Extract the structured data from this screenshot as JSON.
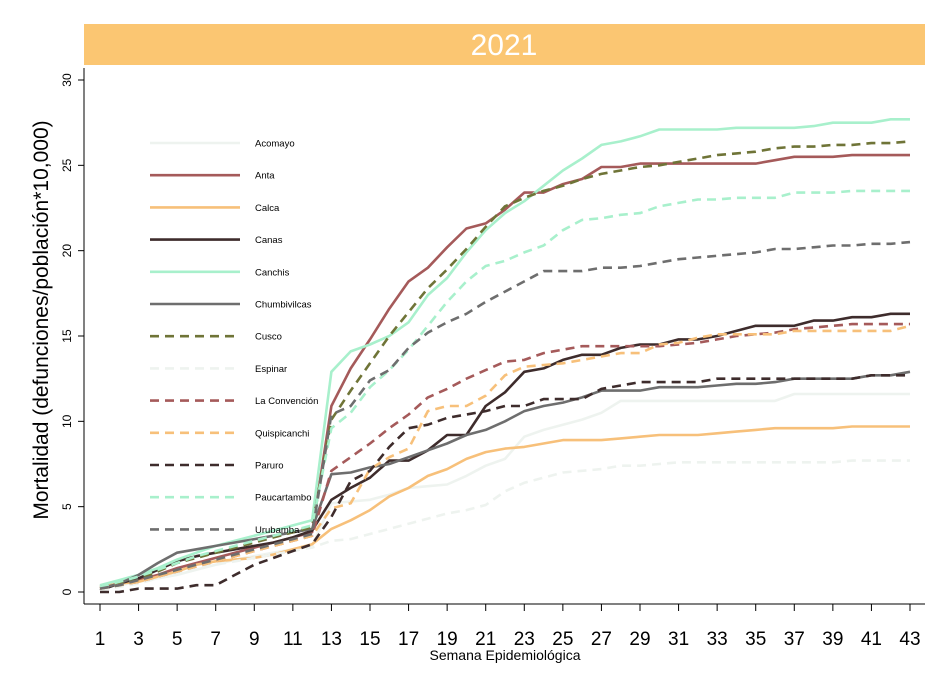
{
  "chart_data": {
    "type": "line",
    "title": "2021",
    "xlabel": "Semana Epidemiológica",
    "ylabel": "Mortalidad (defunciones/población*10,000)",
    "xlim": [
      1,
      43
    ],
    "ylim": [
      0,
      30
    ],
    "xticks": [
      1,
      3,
      5,
      7,
      9,
      11,
      13,
      15,
      17,
      19,
      21,
      23,
      25,
      27,
      29,
      31,
      33,
      35,
      37,
      39,
      41,
      43
    ],
    "yticks": [
      0,
      5,
      10,
      15,
      20,
      25,
      30
    ],
    "grid": false,
    "legend_position": "top-left",
    "x": [
      1,
      2,
      3,
      4,
      5,
      6,
      7,
      8,
      9,
      10,
      11,
      12,
      13,
      14,
      15,
      16,
      17,
      18,
      19,
      20,
      21,
      22,
      23,
      24,
      25,
      26,
      27,
      28,
      29,
      30,
      31,
      32,
      33,
      34,
      35,
      36,
      37,
      38,
      39,
      40,
      41,
      42,
      43
    ],
    "series": [
      {
        "name": "Acomayo",
        "color": "#eef3ef",
        "dash": "solid",
        "values": [
          0.2,
          0.4,
          0.6,
          0.8,
          1.0,
          1.3,
          1.6,
          1.9,
          2.1,
          2.3,
          2.5,
          2.7,
          5.2,
          5.3,
          5.4,
          5.7,
          6.1,
          6.2,
          6.3,
          6.8,
          7.4,
          7.8,
          9.1,
          9.5,
          9.8,
          10.1,
          10.5,
          11.2,
          11.2,
          11.2,
          11.2,
          11.2,
          11.2,
          11.2,
          11.2,
          11.2,
          11.6,
          11.6,
          11.6,
          11.6,
          11.6,
          11.6,
          11.6
        ]
      },
      {
        "name": "Anta",
        "color": "#a55a5a",
        "dash": "solid",
        "values": [
          0.3,
          0.5,
          0.7,
          1.0,
          1.4,
          1.7,
          2.0,
          2.3,
          2.6,
          2.9,
          3.2,
          3.5,
          10.9,
          13.1,
          14.8,
          16.6,
          18.2,
          19.0,
          20.2,
          21.3,
          21.6,
          22.4,
          23.4,
          23.4,
          23.9,
          24.2,
          24.9,
          24.9,
          25.1,
          25.1,
          25.1,
          25.1,
          25.1,
          25.1,
          25.1,
          25.3,
          25.5,
          25.5,
          25.5,
          25.6,
          25.6,
          25.6,
          25.6
        ]
      },
      {
        "name": "Calca",
        "color": "#f7c07a",
        "dash": "solid",
        "values": [
          0.3,
          0.5,
          0.6,
          0.9,
          1.2,
          1.6,
          1.8,
          1.9,
          2.0,
          2.2,
          2.5,
          2.8,
          3.7,
          4.2,
          4.8,
          5.6,
          6.1,
          6.8,
          7.2,
          7.8,
          8.2,
          8.4,
          8.5,
          8.7,
          8.9,
          8.9,
          8.9,
          9.0,
          9.1,
          9.2,
          9.2,
          9.2,
          9.3,
          9.4,
          9.5,
          9.6,
          9.6,
          9.6,
          9.6,
          9.7,
          9.7,
          9.7,
          9.7
        ]
      },
      {
        "name": "Canas",
        "color": "#3e2c2c",
        "dash": "solid",
        "values": [
          0.1,
          0.5,
          0.8,
          1.3,
          1.8,
          2.1,
          2.3,
          2.5,
          2.7,
          2.9,
          3.2,
          3.6,
          5.4,
          6.1,
          6.7,
          7.7,
          7.7,
          8.3,
          9.2,
          9.2,
          10.9,
          11.7,
          12.9,
          13.1,
          13.6,
          13.9,
          13.9,
          14.3,
          14.5,
          14.5,
          14.8,
          14.8,
          15.0,
          15.3,
          15.6,
          15.6,
          15.6,
          15.9,
          15.9,
          16.1,
          16.1,
          16.3,
          16.3
        ]
      },
      {
        "name": "Canchis",
        "color": "#a8f0cc",
        "dash": "solid",
        "values": [
          0.4,
          0.7,
          1.0,
          1.4,
          1.9,
          2.3,
          2.7,
          3.0,
          3.3,
          3.6,
          3.9,
          4.2,
          12.9,
          14.1,
          14.5,
          15.0,
          15.8,
          17.4,
          18.4,
          19.9,
          21.2,
          22.2,
          22.9,
          23.8,
          24.7,
          25.4,
          26.2,
          26.4,
          26.7,
          27.1,
          27.1,
          27.1,
          27.1,
          27.2,
          27.2,
          27.2,
          27.2,
          27.3,
          27.5,
          27.5,
          27.5,
          27.7,
          27.7
        ]
      },
      {
        "name": "Chumbivilcas",
        "color": "#6e6e6e",
        "dash": "solid",
        "values": [
          0.2,
          0.5,
          1.0,
          1.7,
          2.3,
          2.5,
          2.7,
          2.9,
          3.1,
          3.3,
          3.5,
          3.7,
          6.9,
          7.0,
          7.3,
          7.5,
          7.9,
          8.3,
          8.7,
          9.2,
          9.5,
          10.0,
          10.6,
          10.9,
          11.1,
          11.4,
          11.8,
          11.8,
          11.8,
          12.0,
          12.0,
          12.0,
          12.1,
          12.2,
          12.2,
          12.3,
          12.5,
          12.5,
          12.5,
          12.5,
          12.7,
          12.7,
          12.9
        ]
      },
      {
        "name": "Cusco",
        "color": "#6f7437",
        "dash": "dashed",
        "values": [
          0.3,
          0.5,
          0.7,
          1.2,
          1.7,
          2.0,
          2.3,
          2.6,
          2.9,
          3.2,
          3.5,
          3.8,
          10.1,
          11.8,
          13.4,
          15.0,
          16.4,
          17.8,
          18.9,
          20.1,
          21.4,
          22.6,
          23.1,
          23.5,
          23.8,
          24.2,
          24.5,
          24.7,
          24.9,
          25.0,
          25.2,
          25.4,
          25.6,
          25.7,
          25.8,
          26.0,
          26.1,
          26.1,
          26.2,
          26.2,
          26.3,
          26.3,
          26.4
        ]
      },
      {
        "name": "Espinar",
        "color": "#eef3ef",
        "dash": "dashed",
        "values": [
          0.1,
          0.3,
          0.5,
          0.8,
          1.1,
          1.4,
          1.6,
          1.8,
          2.0,
          2.2,
          2.4,
          2.6,
          3.0,
          3.1,
          3.4,
          3.7,
          4.0,
          4.3,
          4.6,
          4.8,
          5.1,
          5.9,
          6.4,
          6.7,
          7.0,
          7.1,
          7.2,
          7.4,
          7.4,
          7.5,
          7.6,
          7.6,
          7.6,
          7.6,
          7.6,
          7.6,
          7.6,
          7.6,
          7.6,
          7.7,
          7.7,
          7.7,
          7.7
        ]
      },
      {
        "name": "La Convención",
        "color": "#a55a5a",
        "dash": "dashed",
        "values": [
          0.2,
          0.4,
          0.6,
          0.9,
          1.2,
          1.5,
          1.8,
          2.1,
          2.4,
          2.7,
          3.0,
          3.3,
          7.1,
          7.9,
          8.7,
          9.6,
          10.4,
          11.4,
          11.9,
          12.5,
          13.0,
          13.5,
          13.6,
          14.0,
          14.2,
          14.4,
          14.4,
          14.4,
          14.4,
          14.4,
          14.5,
          14.6,
          14.8,
          15.0,
          15.1,
          15.2,
          15.4,
          15.5,
          15.6,
          15.7,
          15.7,
          15.7,
          15.7
        ]
      },
      {
        "name": "Quispicanchi",
        "color": "#f7c07a",
        "dash": "dashed",
        "values": [
          0.2,
          0.4,
          0.6,
          0.9,
          1.2,
          1.5,
          1.8,
          2.1,
          2.4,
          2.7,
          3.0,
          3.3,
          4.9,
          5.2,
          7.2,
          7.9,
          8.4,
          10.6,
          10.9,
          10.9,
          11.5,
          12.7,
          13.2,
          13.3,
          13.4,
          13.6,
          13.8,
          14.0,
          14.0,
          14.5,
          14.6,
          14.9,
          15.1,
          15.1,
          15.1,
          15.1,
          15.3,
          15.3,
          15.3,
          15.3,
          15.3,
          15.3,
          15.6
        ]
      },
      {
        "name": "Paruro",
        "color": "#3e2c2c",
        "dash": "dashed",
        "values": [
          0.0,
          0.0,
          0.2,
          0.2,
          0.2,
          0.4,
          0.4,
          1.0,
          1.6,
          2.0,
          2.4,
          2.8,
          4.4,
          6.5,
          7.1,
          8.5,
          9.6,
          9.8,
          10.2,
          10.4,
          10.6,
          10.9,
          10.9,
          11.3,
          11.3,
          11.3,
          11.9,
          12.1,
          12.3,
          12.3,
          12.3,
          12.3,
          12.5,
          12.5,
          12.5,
          12.5,
          12.5,
          12.5,
          12.5,
          12.5,
          12.7,
          12.7,
          12.7
        ]
      },
      {
        "name": "Paucartambo",
        "color": "#a8f0cc",
        "dash": "dashed",
        "values": [
          0.3,
          0.6,
          0.9,
          1.3,
          1.7,
          2.1,
          2.4,
          2.7,
          3.0,
          3.3,
          3.6,
          3.9,
          9.6,
          10.5,
          12.0,
          13.0,
          14.2,
          15.6,
          17.0,
          18.2,
          19.1,
          19.4,
          19.9,
          20.3,
          21.2,
          21.8,
          21.9,
          22.1,
          22.2,
          22.6,
          22.8,
          23.0,
          23.0,
          23.1,
          23.1,
          23.1,
          23.4,
          23.4,
          23.4,
          23.5,
          23.5,
          23.5,
          23.5
        ]
      },
      {
        "name": "Urubamba",
        "color": "#6e6e6e",
        "dash": "dashed",
        "values": [
          0.2,
          0.4,
          0.7,
          1.0,
          1.3,
          1.6,
          1.9,
          2.2,
          2.5,
          2.8,
          3.1,
          3.4,
          10.4,
          10.9,
          12.4,
          13.0,
          14.3,
          15.2,
          15.8,
          16.3,
          17.0,
          17.6,
          18.2,
          18.8,
          18.8,
          18.8,
          19.0,
          19.0,
          19.1,
          19.3,
          19.5,
          19.6,
          19.7,
          19.8,
          19.9,
          20.1,
          20.1,
          20.2,
          20.3,
          20.3,
          20.4,
          20.4,
          20.5
        ]
      }
    ]
  }
}
